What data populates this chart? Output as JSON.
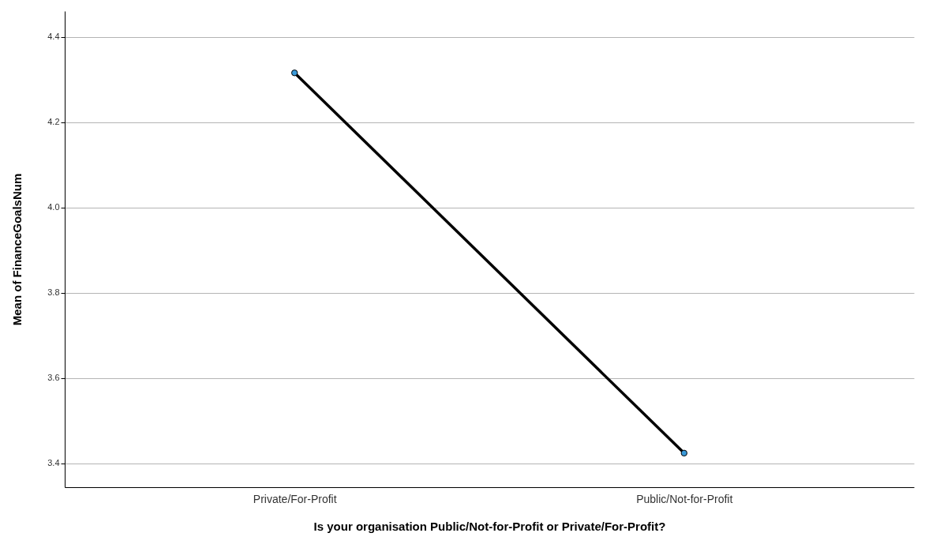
{
  "chart_data": {
    "type": "line",
    "xlabel": "Is your organisation Public/Not-for-Profit or Private/For-Profit?",
    "ylabel": "Mean of FinanceGoalsNum",
    "categories": [
      "Private/For-Profit",
      "Public/Not-for-Profit"
    ],
    "series": [
      {
        "color": "#000000",
        "values": [
          4.316,
          3.424
        ]
      }
    ],
    "ylim": [
      3.344,
      4.461
    ],
    "yticks": [
      {
        "value": 3.4,
        "label": "3.4"
      },
      {
        "value": 3.6,
        "label": "3.6"
      },
      {
        "value": 3.8,
        "label": "3.8"
      },
      {
        "value": 4.0,
        "label": "4.0"
      },
      {
        "value": 4.2,
        "label": "4.2"
      },
      {
        "value": 4.4,
        "label": "4.4"
      }
    ],
    "grid": "y",
    "marker": "circle",
    "line_style": "solid"
  }
}
